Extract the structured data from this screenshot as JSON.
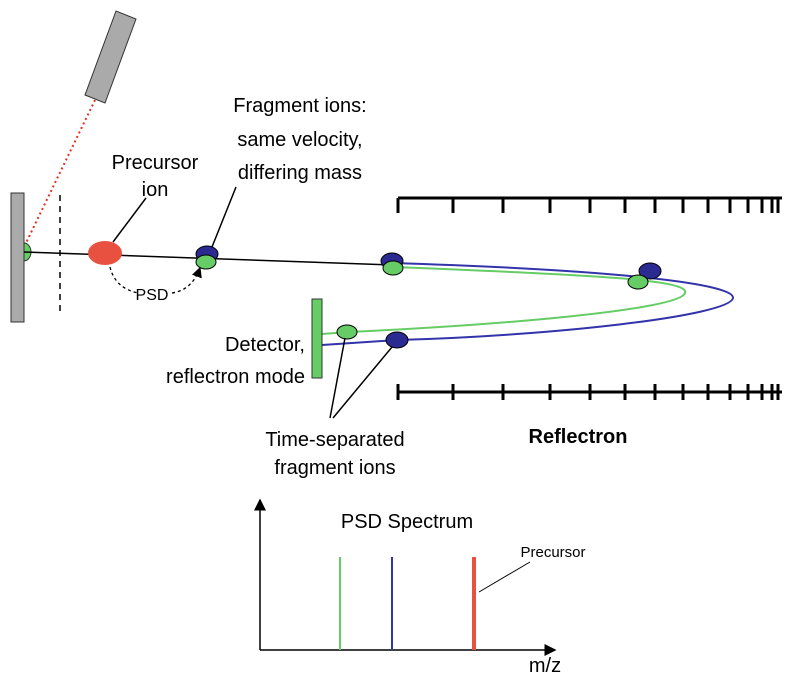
{
  "labels": {
    "precursor_ion": [
      "Precursor",
      "ion"
    ],
    "fragment_ions": [
      "Fragment ions:",
      "same velocity,",
      "differing mass"
    ],
    "psd": "PSD",
    "detector": [
      "Detector,",
      "reflectron mode"
    ],
    "time_separated": [
      "Time-separated",
      "fragment ions"
    ],
    "reflectron": "Reflectron",
    "spectrum_title": "PSD Spectrum",
    "spectrum_precursor": "Precursor",
    "x_axis": "m/z"
  }
}
